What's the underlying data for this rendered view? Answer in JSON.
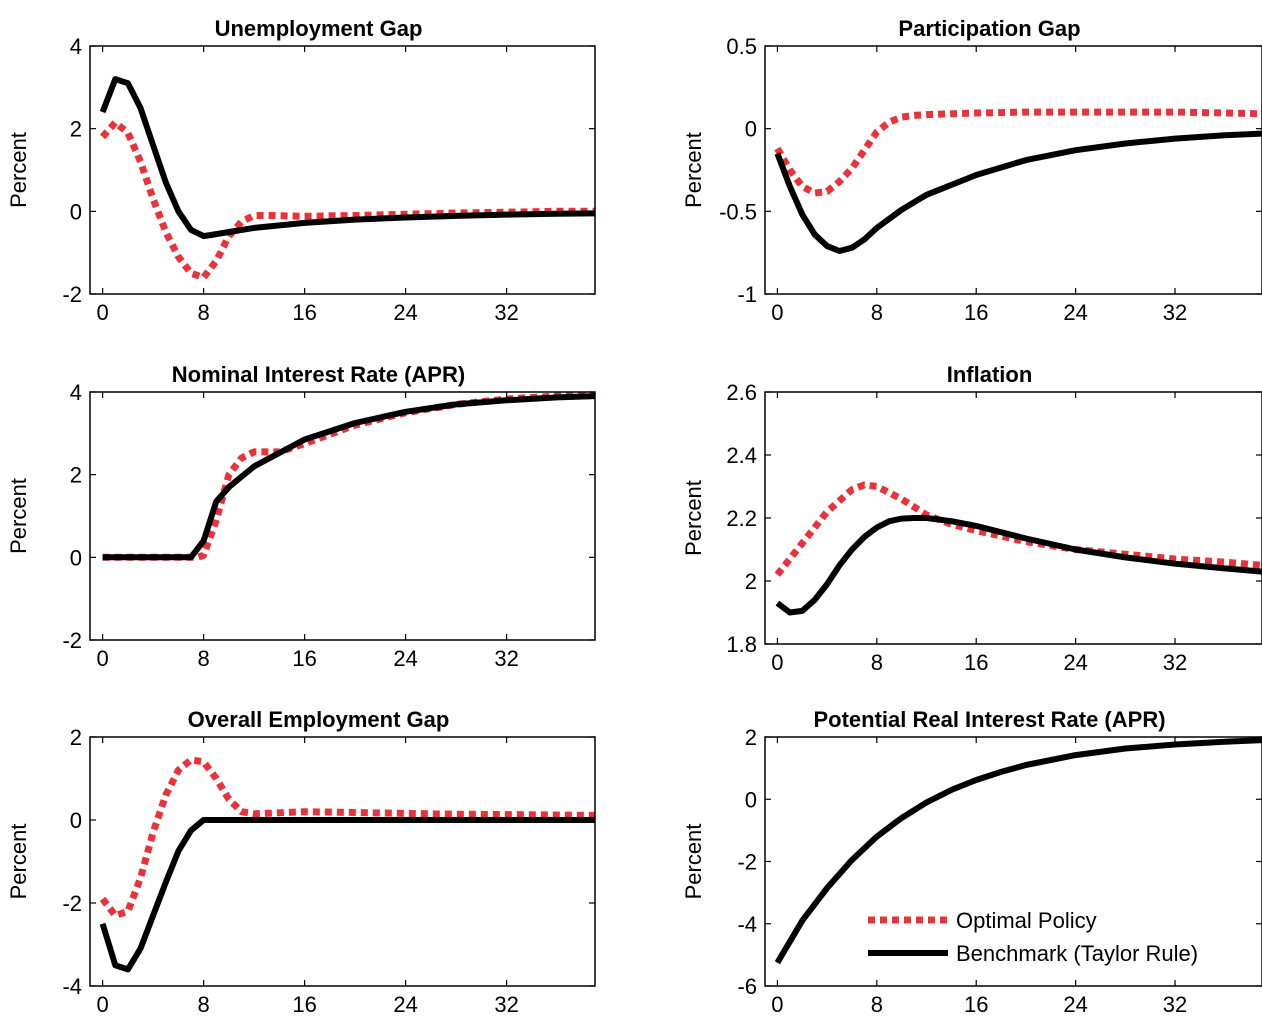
{
  "legend": {
    "optimal_label": "Optimal Policy",
    "benchmark_label": "Benchmark (Taylor Rule)"
  },
  "colors": {
    "optimal": "#e8333a",
    "benchmark": "#000000"
  },
  "chart_data": [
    {
      "type": "line",
      "title": "Unemployment Gap",
      "xlabel": "",
      "ylabel": "Percent",
      "xlim": [
        -1,
        39
      ],
      "ylim": [
        -2,
        4
      ],
      "xticks": [
        0,
        8,
        16,
        24,
        32
      ],
      "yticks": [
        -2,
        0,
        2,
        4
      ],
      "ytick_labels": [
        "-2",
        "0",
        "2",
        "4"
      ],
      "series": [
        {
          "name": "Optimal Policy",
          "style": "dotted",
          "x": [
            0,
            1,
            2,
            3,
            4,
            5,
            6,
            7,
            8,
            9,
            10,
            11,
            12,
            13,
            16,
            20,
            24,
            28,
            32,
            36,
            39
          ],
          "y": [
            1.8,
            2.15,
            1.9,
            1.2,
            0.3,
            -0.5,
            -1.1,
            -1.5,
            -1.6,
            -1.2,
            -0.6,
            -0.25,
            -0.1,
            -0.1,
            -0.12,
            -0.1,
            -0.07,
            -0.04,
            -0.02,
            0.0,
            0.0
          ]
        },
        {
          "name": "Benchmark (Taylor Rule)",
          "style": "solid",
          "x": [
            0,
            1,
            2,
            3,
            4,
            5,
            6,
            7,
            8,
            9,
            10,
            12,
            16,
            20,
            24,
            28,
            32,
            36,
            39
          ],
          "y": [
            2.4,
            3.2,
            3.1,
            2.5,
            1.6,
            0.7,
            0.0,
            -0.45,
            -0.6,
            -0.55,
            -0.5,
            -0.4,
            -0.28,
            -0.2,
            -0.15,
            -0.11,
            -0.08,
            -0.06,
            -0.05
          ]
        }
      ]
    },
    {
      "type": "line",
      "title": "Participation Gap",
      "xlabel": "",
      "ylabel": "Percent",
      "xlim": [
        -1,
        39
      ],
      "ylim": [
        -1,
        0.5
      ],
      "xticks": [
        0,
        8,
        16,
        24,
        32
      ],
      "yticks": [
        -1,
        -0.5,
        0,
        0.5
      ],
      "ytick_labels": [
        "-1",
        "-0.5",
        "0",
        "0.5"
      ],
      "series": [
        {
          "name": "Optimal Policy",
          "style": "dotted",
          "x": [
            0,
            1,
            2,
            3,
            4,
            5,
            6,
            7,
            8,
            9,
            10,
            11,
            12,
            16,
            20,
            24,
            28,
            32,
            36,
            39
          ],
          "y": [
            -0.12,
            -0.25,
            -0.35,
            -0.39,
            -0.38,
            -0.32,
            -0.24,
            -0.13,
            -0.02,
            0.04,
            0.07,
            0.08,
            0.085,
            0.095,
            0.1,
            0.1,
            0.1,
            0.1,
            0.095,
            0.09
          ]
        },
        {
          "name": "Benchmark (Taylor Rule)",
          "style": "solid",
          "x": [
            0,
            1,
            2,
            3,
            4,
            5,
            6,
            7,
            8,
            10,
            12,
            16,
            20,
            24,
            28,
            32,
            36,
            39
          ],
          "y": [
            -0.15,
            -0.35,
            -0.52,
            -0.64,
            -0.71,
            -0.74,
            -0.72,
            -0.67,
            -0.6,
            -0.49,
            -0.4,
            -0.28,
            -0.19,
            -0.13,
            -0.09,
            -0.06,
            -0.04,
            -0.03
          ]
        }
      ]
    },
    {
      "type": "line",
      "title": "Nominal Interest Rate (APR)",
      "xlabel": "",
      "ylabel": "Percent",
      "xlim": [
        -1,
        39
      ],
      "ylim": [
        -2,
        4
      ],
      "xticks": [
        0,
        8,
        16,
        24,
        32
      ],
      "yticks": [
        -2,
        0,
        2,
        4
      ],
      "ytick_labels": [
        "-2",
        "0",
        "2",
        "4"
      ],
      "series": [
        {
          "name": "Optimal Policy",
          "style": "dotted",
          "x": [
            0,
            7,
            7.5,
            8,
            9,
            10,
            11,
            12,
            14,
            16,
            20,
            24,
            28,
            32,
            36,
            39
          ],
          "y": [
            0,
            0,
            0,
            0.05,
            0.9,
            2.0,
            2.4,
            2.55,
            2.55,
            2.75,
            3.2,
            3.5,
            3.7,
            3.83,
            3.9,
            3.93
          ]
        },
        {
          "name": "Benchmark (Taylor Rule)",
          "style": "solid",
          "x": [
            0,
            7,
            8,
            9,
            10,
            12,
            16,
            20,
            24,
            28,
            32,
            36,
            39
          ],
          "y": [
            0,
            0,
            0.4,
            1.35,
            1.7,
            2.2,
            2.85,
            3.25,
            3.52,
            3.7,
            3.8,
            3.87,
            3.9
          ]
        }
      ]
    },
    {
      "type": "line",
      "title": "Inflation",
      "xlabel": "",
      "ylabel": "Percent",
      "xlim": [
        -1,
        39
      ],
      "ylim": [
        1.8,
        2.6
      ],
      "xticks": [
        0,
        8,
        16,
        24,
        32
      ],
      "yticks": [
        1.8,
        2.0,
        2.2,
        2.4,
        2.6
      ],
      "ytick_labels": [
        "1.8",
        "2",
        "2.2",
        "2.4",
        "2.6"
      ],
      "series": [
        {
          "name": "Optimal Policy",
          "style": "dotted",
          "x": [
            0,
            2,
            4,
            6,
            7,
            8,
            10,
            12,
            14,
            16,
            20,
            24,
            28,
            32,
            36,
            39
          ],
          "y": [
            2.02,
            2.12,
            2.22,
            2.29,
            2.305,
            2.3,
            2.26,
            2.21,
            2.18,
            2.16,
            2.125,
            2.1,
            2.085,
            2.07,
            2.06,
            2.05
          ]
        },
        {
          "name": "Benchmark (Taylor Rule)",
          "style": "solid",
          "x": [
            0,
            1,
            2,
            3,
            4,
            5,
            6,
            7,
            8,
            9,
            10,
            11,
            12,
            14,
            16,
            20,
            24,
            28,
            32,
            36,
            39
          ],
          "y": [
            1.93,
            1.9,
            1.905,
            1.94,
            1.99,
            2.05,
            2.1,
            2.14,
            2.17,
            2.19,
            2.198,
            2.2,
            2.2,
            2.19,
            2.175,
            2.135,
            2.1,
            2.075,
            2.055,
            2.04,
            2.03
          ]
        }
      ]
    },
    {
      "type": "line",
      "title": "Overall Employment Gap",
      "xlabel": "",
      "ylabel": "Percent",
      "xlim": [
        -1,
        39
      ],
      "ylim": [
        -4,
        2
      ],
      "xticks": [
        0,
        8,
        16,
        24,
        32
      ],
      "yticks": [
        -4,
        -2,
        0,
        2
      ],
      "ytick_labels": [
        "-4",
        "-2",
        "0",
        "2"
      ],
      "series": [
        {
          "name": "Optimal Policy",
          "style": "dotted",
          "x": [
            0,
            1,
            2,
            3,
            4,
            5,
            6,
            7,
            8,
            9,
            10,
            11,
            12,
            16,
            20,
            24,
            28,
            32,
            36,
            39
          ],
          "y": [
            -1.9,
            -2.3,
            -2.2,
            -1.4,
            -0.3,
            0.6,
            1.2,
            1.45,
            1.4,
            1.0,
            0.5,
            0.2,
            0.15,
            0.2,
            0.18,
            0.16,
            0.14,
            0.13,
            0.12,
            0.11
          ]
        },
        {
          "name": "Benchmark (Taylor Rule)",
          "style": "solid",
          "x": [
            0,
            1,
            2,
            3,
            4,
            5,
            6,
            7,
            8,
            10,
            16,
            24,
            32,
            39
          ],
          "y": [
            -2.5,
            -3.5,
            -3.6,
            -3.1,
            -2.3,
            -1.5,
            -0.75,
            -0.25,
            0,
            0,
            0,
            0,
            0,
            0
          ]
        }
      ]
    },
    {
      "type": "line",
      "title": "Potential Real Interest Rate (APR)",
      "xlabel": "",
      "ylabel": "Percent",
      "xlim": [
        -1,
        39
      ],
      "ylim": [
        -6,
        2
      ],
      "xticks": [
        0,
        8,
        16,
        24,
        32
      ],
      "yticks": [
        -6,
        -4,
        -2,
        0,
        2
      ],
      "ytick_labels": [
        "-6",
        "-4",
        "-2",
        "0",
        "2"
      ],
      "legend_position": "bottom-right",
      "series": [
        {
          "name": "Benchmark (Taylor Rule)",
          "style": "solid",
          "x": [
            0,
            2,
            4,
            6,
            8,
            10,
            12,
            14,
            16,
            18,
            20,
            24,
            28,
            32,
            36,
            39
          ],
          "y": [
            -5.25,
            -3.9,
            -2.85,
            -1.95,
            -1.2,
            -0.6,
            -0.1,
            0.3,
            0.62,
            0.88,
            1.1,
            1.42,
            1.63,
            1.76,
            1.85,
            1.9
          ]
        }
      ]
    }
  ]
}
